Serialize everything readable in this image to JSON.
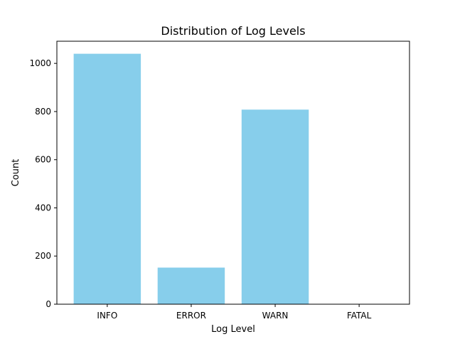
{
  "chart_data": {
    "type": "bar",
    "title": "Distribution of Log Levels",
    "xlabel": "Log Level",
    "ylabel": "Count",
    "categories": [
      "INFO",
      "ERROR",
      "WARN",
      "FATAL"
    ],
    "values": [
      1040,
      152,
      808,
      0
    ],
    "ylim": [
      0,
      1092
    ],
    "yticks": [
      0,
      200,
      400,
      600,
      800,
      1000
    ],
    "grid": false,
    "bar_color": "#87ceeb"
  }
}
